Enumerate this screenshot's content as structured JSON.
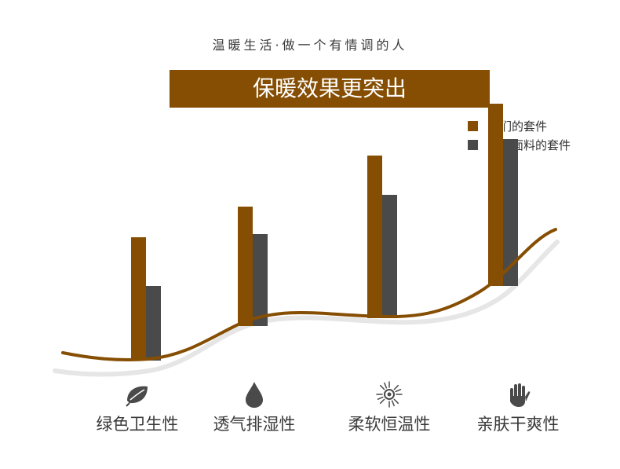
{
  "header": {
    "tagline": "温暖生活·做一个有情调的人",
    "title": "保暖效果更突出"
  },
  "colors": {
    "brand": "#864e03",
    "ours": "#864e03",
    "others": "#4a4a4a",
    "curve_shadow": "#e6e6e6"
  },
  "legend": [
    {
      "label": "我们的套件",
      "color": "#864e03"
    },
    {
      "label": "其他面料的套件",
      "color": "#4a4a4a"
    }
  ],
  "features": [
    {
      "label": "绿色卫生性",
      "icon": "leaf-icon"
    },
    {
      "label": "透气排湿性",
      "icon": "water-drop-icon"
    },
    {
      "label": "柔软恒温性",
      "icon": "sun-icon"
    },
    {
      "label": "亲肤干爽性",
      "icon": "hand-icon"
    }
  ],
  "chart_data": {
    "type": "bar",
    "categories": [
      "绿色卫生性",
      "透气排湿性",
      "柔软恒温性",
      "亲肤干爽性"
    ],
    "series": [
      {
        "name": "我们的套件",
        "values": [
          155,
          150,
          205,
          230
        ]
      },
      {
        "name": "其他面料的套件",
        "values": [
          93,
          115,
          155,
          185
        ]
      }
    ],
    "title": "保暖效果更突出",
    "ylim": [
      0,
      240
    ],
    "grid": false,
    "legend_position": "top-right"
  }
}
